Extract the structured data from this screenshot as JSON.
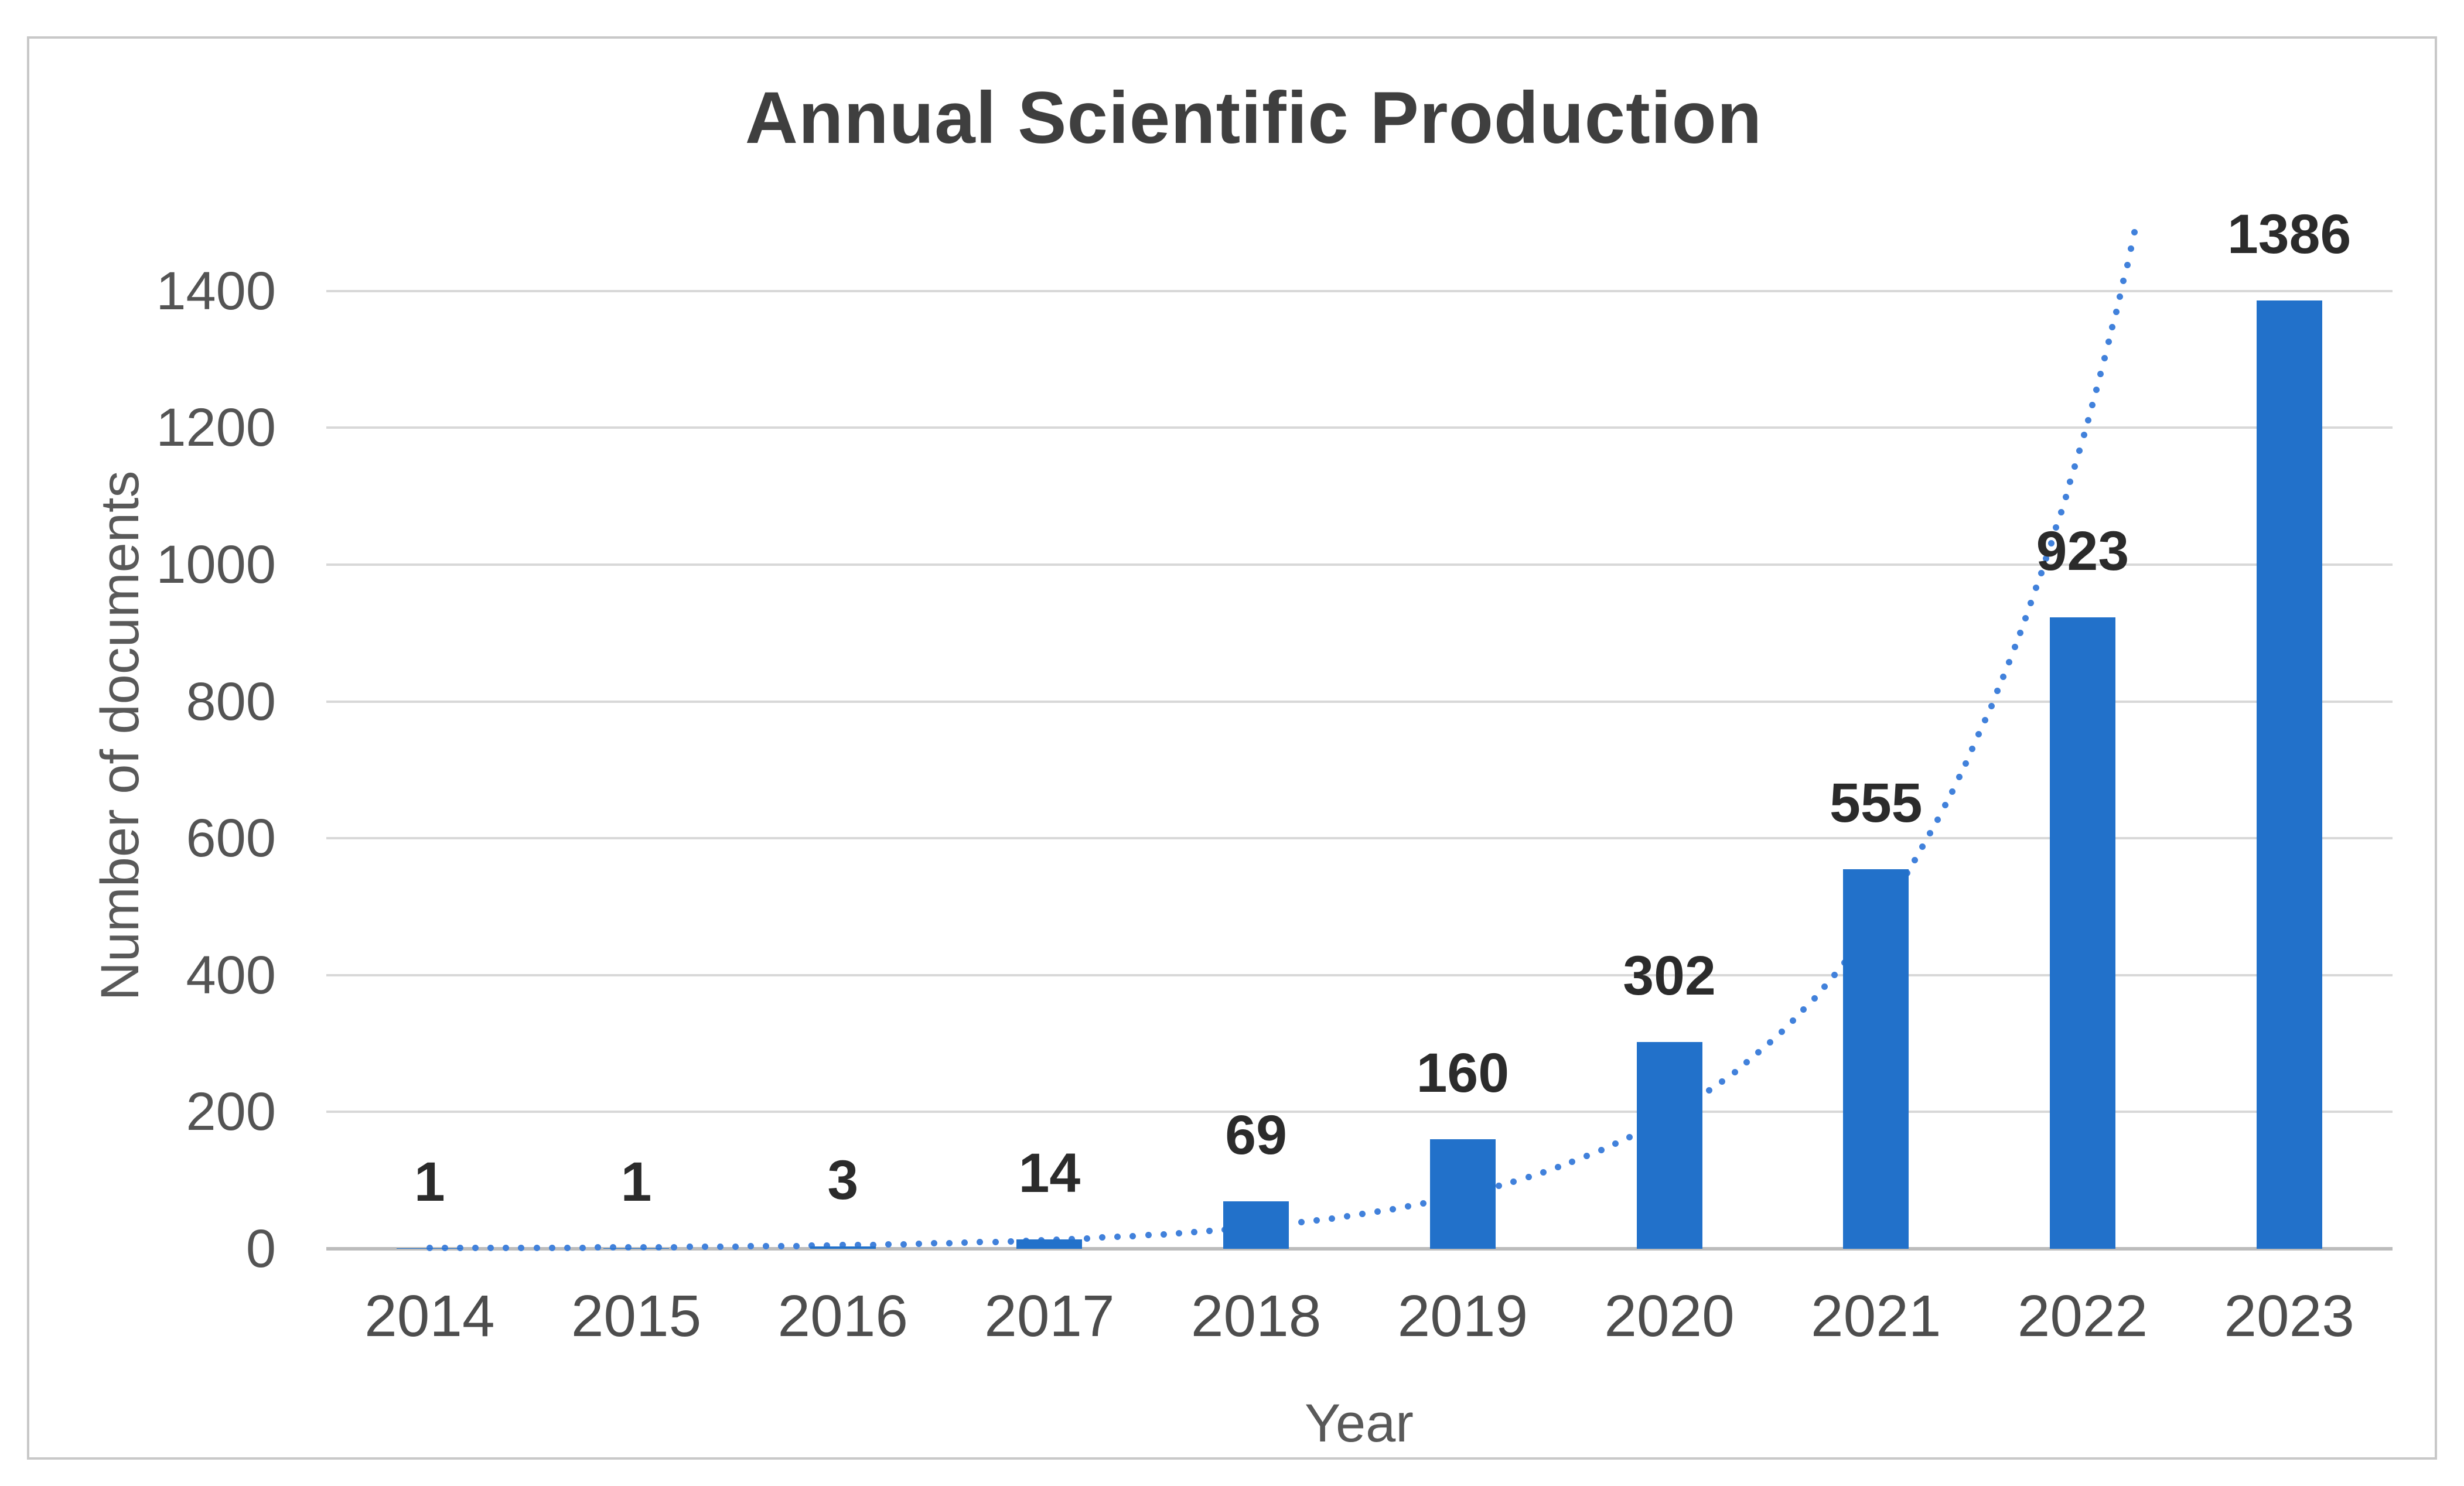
{
  "chart_data": {
    "type": "bar",
    "title": "Annual Scientific Production",
    "categories": [
      "2014",
      "2015",
      "2016",
      "2017",
      "2018",
      "2019",
      "2020",
      "2021",
      "2022",
      "2023"
    ],
    "values": [
      1,
      1,
      3,
      14,
      69,
      160,
      302,
      555,
      923,
      1386
    ],
    "xlabel": "Year",
    "ylabel": "Number of documents",
    "ylim": [
      0,
      1500
    ],
    "yticks": [
      0,
      200,
      400,
      600,
      800,
      1000,
      1200,
      1400
    ],
    "grid": true,
    "legend": false,
    "bar_color": "#2271ca",
    "trendline": {
      "type": "exponential",
      "a": 0.348,
      "b": 0.9035,
      "style": "dotted",
      "color": "#4181db"
    },
    "colors": {
      "title_text": "#3f3f3f",
      "tick_text": "#545454",
      "data_label_text": "#2b2b2b",
      "gridline": "#d8d8d8",
      "axis_line": "#bcbcbc",
      "figure_border": "#c8c8c8"
    }
  }
}
